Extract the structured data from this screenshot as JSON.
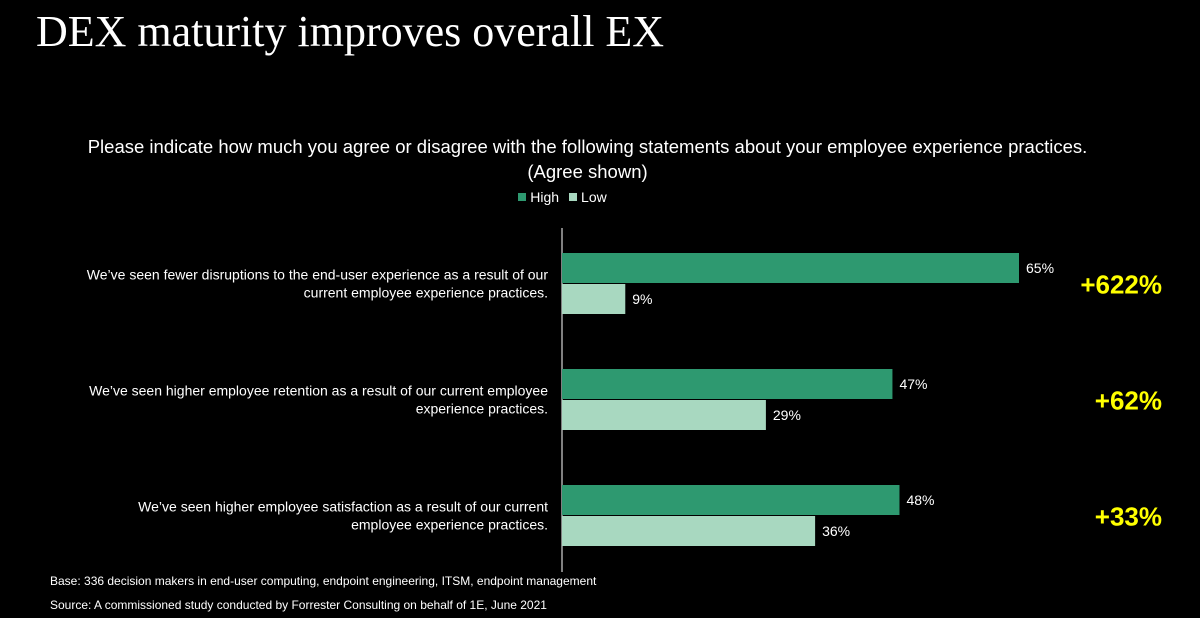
{
  "slide": {
    "title": "DEX maturity improves overall EX",
    "base_note": "Base: 336 decision makers in end-user computing, endpoint engineering, ITSM, endpoint management",
    "source_note": "Source: A commissioned study conducted by Forrester Consulting on behalf of 1E, June 2021"
  },
  "colors": {
    "background": "#000000",
    "high": "#2e9970",
    "low": "#a8d8c0",
    "callout": "#ffff00"
  },
  "chart_data": {
    "type": "bar",
    "orientation": "horizontal",
    "title": "Please indicate how much you agree or disagree with the following statements about your employee experience practices. (Agree shown)",
    "categories": [
      [
        "We’ve seen fewer disruptions to the end-user experience as a result of our",
        "current employee experience practices."
      ],
      [
        "We’ve seen higher employee retention as a result of our current employee",
        "experience practices."
      ],
      [
        "We’ve seen higher employee satisfaction as a result of our current",
        "employee experience practices."
      ]
    ],
    "series": [
      {
        "name": "High",
        "values": [
          65,
          47,
          48
        ],
        "labels": [
          "65%",
          "47%",
          "48%"
        ]
      },
      {
        "name": "Low",
        "values": [
          9,
          29,
          36
        ],
        "labels": [
          "9%",
          "29%",
          "36%"
        ]
      }
    ],
    "callouts": [
      "+622%",
      "+62%",
      "+33%"
    ],
    "legend_position": "top-center",
    "grid": false,
    "xlim": [
      0,
      65
    ]
  }
}
